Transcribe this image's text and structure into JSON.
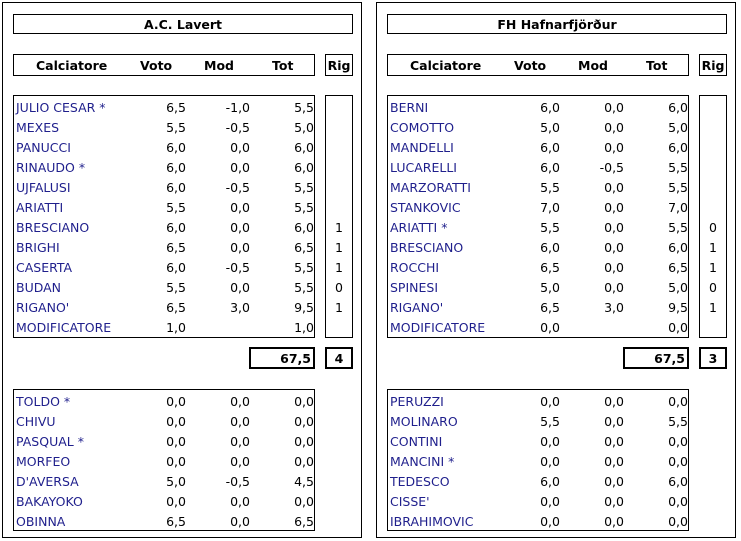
{
  "headers": {
    "name": "Calciatore",
    "voto": "Voto",
    "mod": "Mod",
    "tot": "Tot",
    "rig": "Rig"
  },
  "teams": [
    {
      "name": "A.C. Lavert",
      "starters": [
        {
          "name": "JULIO CESAR *",
          "voto": "6,5",
          "mod": "-1,0",
          "tot": "5,5",
          "rig": ""
        },
        {
          "name": "MEXES",
          "voto": "5,5",
          "mod": "-0,5",
          "tot": "5,0",
          "rig": ""
        },
        {
          "name": "PANUCCI",
          "voto": "6,0",
          "mod": "0,0",
          "tot": "6,0",
          "rig": ""
        },
        {
          "name": "RINAUDO *",
          "voto": "6,0",
          "mod": "0,0",
          "tot": "6,0",
          "rig": ""
        },
        {
          "name": "UJFALUSI",
          "voto": "6,0",
          "mod": "-0,5",
          "tot": "5,5",
          "rig": ""
        },
        {
          "name": "ARIATTI",
          "voto": "5,5",
          "mod": "0,0",
          "tot": "5,5",
          "rig": ""
        },
        {
          "name": "BRESCIANO",
          "voto": "6,0",
          "mod": "0,0",
          "tot": "6,0",
          "rig": "1"
        },
        {
          "name": "BRIGHI",
          "voto": "6,5",
          "mod": "0,0",
          "tot": "6,5",
          "rig": "1"
        },
        {
          "name": "CASERTA",
          "voto": "6,0",
          "mod": "-0,5",
          "tot": "5,5",
          "rig": "1"
        },
        {
          "name": "BUDAN",
          "voto": "5,5",
          "mod": "0,0",
          "tot": "5,5",
          "rig": "0"
        },
        {
          "name": "RIGANO'",
          "voto": "6,5",
          "mod": "3,0",
          "tot": "9,5",
          "rig": "1"
        },
        {
          "name": "MODIFICATORE",
          "voto": "1,0",
          "mod": "",
          "tot": "1,0",
          "rig": ""
        }
      ],
      "total": "67,5",
      "rig_total": "4",
      "bench": [
        {
          "name": "TOLDO *",
          "voto": "0,0",
          "mod": "0,0",
          "tot": "0,0"
        },
        {
          "name": "CHIVU",
          "voto": "0,0",
          "mod": "0,0",
          "tot": "0,0"
        },
        {
          "name": "PASQUAL *",
          "voto": "0,0",
          "mod": "0,0",
          "tot": "0,0"
        },
        {
          "name": "MORFEO",
          "voto": "0,0",
          "mod": "0,0",
          "tot": "0,0"
        },
        {
          "name": "D'AVERSA",
          "voto": "5,0",
          "mod": "-0,5",
          "tot": "4,5"
        },
        {
          "name": "BAKAYOKO",
          "voto": "0,0",
          "mod": "0,0",
          "tot": "0,0"
        },
        {
          "name": "OBINNA",
          "voto": "6,5",
          "mod": "0,0",
          "tot": "6,5"
        }
      ]
    },
    {
      "name": "FH Hafnarfjörður",
      "starters": [
        {
          "name": "BERNI",
          "voto": "6,0",
          "mod": "0,0",
          "tot": "6,0",
          "rig": ""
        },
        {
          "name": "COMOTTO",
          "voto": "5,0",
          "mod": "0,0",
          "tot": "5,0",
          "rig": ""
        },
        {
          "name": "MANDELLI",
          "voto": "6,0",
          "mod": "0,0",
          "tot": "6,0",
          "rig": ""
        },
        {
          "name": "LUCARELLI",
          "voto": "6,0",
          "mod": "-0,5",
          "tot": "5,5",
          "rig": ""
        },
        {
          "name": "MARZORATTI",
          "voto": "5,5",
          "mod": "0,0",
          "tot": "5,5",
          "rig": ""
        },
        {
          "name": "STANKOVIC",
          "voto": "7,0",
          "mod": "0,0",
          "tot": "7,0",
          "rig": ""
        },
        {
          "name": "ARIATTI *",
          "voto": "5,5",
          "mod": "0,0",
          "tot": "5,5",
          "rig": "0"
        },
        {
          "name": "BRESCIANO",
          "voto": "6,0",
          "mod": "0,0",
          "tot": "6,0",
          "rig": "1"
        },
        {
          "name": "ROCCHI",
          "voto": "6,5",
          "mod": "0,0",
          "tot": "6,5",
          "rig": "1"
        },
        {
          "name": "SPINESI",
          "voto": "5,0",
          "mod": "0,0",
          "tot": "5,0",
          "rig": "0"
        },
        {
          "name": "RIGANO'",
          "voto": "6,5",
          "mod": "3,0",
          "tot": "9,5",
          "rig": "1"
        },
        {
          "name": "MODIFICATORE",
          "voto": "0,0",
          "mod": "",
          "tot": "0,0",
          "rig": ""
        }
      ],
      "total": "67,5",
      "rig_total": "3",
      "bench": [
        {
          "name": "PERUZZI",
          "voto": "0,0",
          "mod": "0,0",
          "tot": "0,0"
        },
        {
          "name": "MOLINARO",
          "voto": "5,5",
          "mod": "0,0",
          "tot": "5,5"
        },
        {
          "name": "CONTINI",
          "voto": "0,0",
          "mod": "0,0",
          "tot": "0,0"
        },
        {
          "name": "MANCINI *",
          "voto": "0,0",
          "mod": "0,0",
          "tot": "0,0"
        },
        {
          "name": "TEDESCO",
          "voto": "6,0",
          "mod": "0,0",
          "tot": "6,0"
        },
        {
          "name": "CISSE'",
          "voto": "0,0",
          "mod": "0,0",
          "tot": "0,0"
        },
        {
          "name": "IBRAHIMOVIC",
          "voto": "0,0",
          "mod": "0,0",
          "tot": "0,0"
        }
      ]
    }
  ]
}
